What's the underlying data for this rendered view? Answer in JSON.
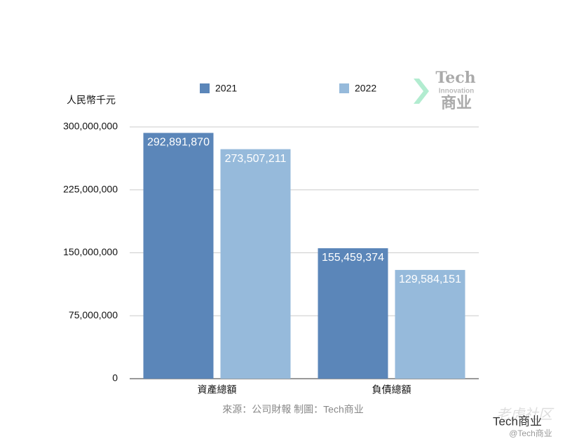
{
  "chart_data": {
    "type": "bar",
    "y_label": "人民幣千元",
    "categories": [
      "資產總額",
      "負債總額"
    ],
    "series": [
      {
        "name": "2021",
        "color": "#5b86b9",
        "values": [
          292891870,
          155459374
        ],
        "value_labels": [
          "292,891,870",
          "155,459,374"
        ]
      },
      {
        "name": "2022",
        "color": "#96badb",
        "values": [
          273507211,
          129584151
        ],
        "value_labels": [
          "273,507,211",
          "129,584,151"
        ]
      }
    ],
    "ylim": [
      0,
      300000000
    ],
    "yticks": [
      0,
      {
        "value": 75000000,
        "label": "75,000,000"
      },
      {
        "value": 150000000,
        "label": "150,000,000"
      },
      {
        "value": 225000000,
        "label": "225,000,000"
      },
      {
        "value": 300000000,
        "label": "300,000,000"
      }
    ],
    "grid": true,
    "legend": "top",
    "source": "來源：公司財報 制圖：Tech商业",
    "logo": {
      "title": "Tech",
      "subtitle": "Innovation",
      "brand": "商业"
    },
    "watermarks": [
      "老虎社区",
      "Tech商业",
      "@Tech商业"
    ]
  }
}
